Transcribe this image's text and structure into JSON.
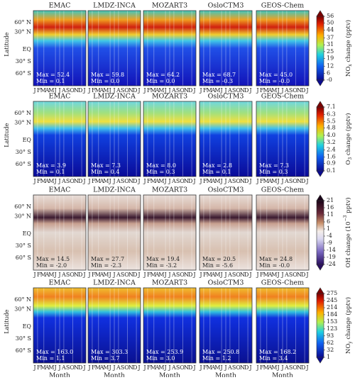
{
  "figure": {
    "y_label": "Latitude",
    "x_label": "Month",
    "lat_ticks": [
      "60° N",
      "30° N",
      "EQ",
      "30° S",
      "60° S"
    ],
    "month_ticks": [
      "J",
      "F",
      "M",
      "A",
      "M",
      "J",
      "J",
      "A",
      "S",
      "O",
      "N",
      "D",
      "J"
    ],
    "rows": [
      {
        "latitude_label": true,
        "cbar_label": {
          "parts": [
            "NO",
            "x",
            " change (pptv)"
          ],
          "shift": "sub"
        },
        "cbar_ticks": [
          56,
          50,
          44,
          37,
          31,
          25,
          19,
          12,
          6,
          {
            "value": 0,
            "label": "-0"
          }
        ],
        "panels": [
          {
            "model": "EMAC",
            "stats": [
              "Max = 52.4",
              "Min = 0.1"
            ]
          },
          {
            "model": "LMDZ-INCA",
            "stats": [
              "Max = 59.8",
              "Min = 0.0"
            ]
          },
          {
            "model": "MOZART3",
            "stats": [
              "Max = 64.2",
              "Min = 0.0"
            ]
          },
          {
            "model": "OsloCTM3",
            "stats": [
              "Max = 68.7",
              "Min = -0.3"
            ]
          },
          {
            "model": "GEOS-Chem",
            "stats": [
              "Max = 45.0",
              "Min = -0.0"
            ]
          }
        ]
      },
      {
        "latitude_label": true,
        "cbar_label": {
          "parts": [
            "O",
            "3",
            " change (pptv)"
          ],
          "shift": "sub"
        },
        "cbar_ticks": [
          7.1,
          6.3,
          5.5,
          4.8,
          {
            "value": 4,
            "label": "4.0"
          },
          3.2,
          2.4,
          1.6,
          0.9,
          0.1
        ],
        "panels": [
          {
            "model": "EMAC",
            "stats": [
              "Max = 3.9",
              "Min = 0.1"
            ]
          },
          {
            "model": "LMDZ-INCA",
            "stats": [
              "Max = 7.3",
              "Min = 0.4"
            ]
          },
          {
            "model": "MOZART3",
            "stats": [
              "Max = 8.0",
              "Min = 0.3"
            ]
          },
          {
            "model": "OsloCTM3",
            "stats": [
              "Max = 2.8",
              "Min = 0.1"
            ]
          },
          {
            "model": "GEOS-Chem",
            "stats": [
              "Max = 7.3",
              "Min = 0.3"
            ]
          }
        ]
      },
      {
        "latitude_label": false,
        "cbar_label": {
          "parts": [
            "OH change (10",
            "−3",
            " pptv)"
          ],
          "shift": "super"
        },
        "cbar_ticks": [
          21,
          16,
          11,
          6,
          1,
          -4,
          -9,
          -14,
          -19,
          -24
        ],
        "panels": [
          {
            "model": "EMAC",
            "stats": [
              "Max = 14.5",
              "Min = -2.0"
            ]
          },
          {
            "model": "LMDZ-INCA",
            "stats": [
              "Max = 27.7",
              "Min = -2.3"
            ]
          },
          {
            "model": "MOZART3",
            "stats": [
              "Max = 19.4",
              "Min = -3.2"
            ]
          },
          {
            "model": "OsloCTM3",
            "stats": [
              "Max = 20.5",
              "Min = -5.6"
            ]
          },
          {
            "model": "GEOS-Chem",
            "stats": [
              "Max = 24.8",
              "Min = -0.0"
            ]
          }
        ]
      },
      {
        "latitude_label": true,
        "cbar_label": {
          "parts": [
            "NO",
            "y",
            " change (pptv)"
          ],
          "shift": "sub"
        },
        "cbar_ticks": [
          275,
          245,
          214,
          184,
          153,
          123,
          93,
          62,
          32,
          1
        ],
        "panels": [
          {
            "model": "EMAC",
            "stats": [
              "Max = 163.0",
              "Min = 1.1"
            ]
          },
          {
            "model": "LMDZ-INCA",
            "stats": [
              "Max = 303.3",
              "Min = 3.7"
            ]
          },
          {
            "model": "MOZART3",
            "stats": [
              "Max = 253.9",
              "Min = 3.0"
            ]
          },
          {
            "model": "OsloCTM3",
            "stats": [
              "Max = 250.8",
              "Min = 1.2"
            ]
          },
          {
            "model": "GEOS-Chem",
            "stats": [
              "Max = 168.2",
              "Min = 3.4"
            ]
          }
        ]
      }
    ]
  }
}
